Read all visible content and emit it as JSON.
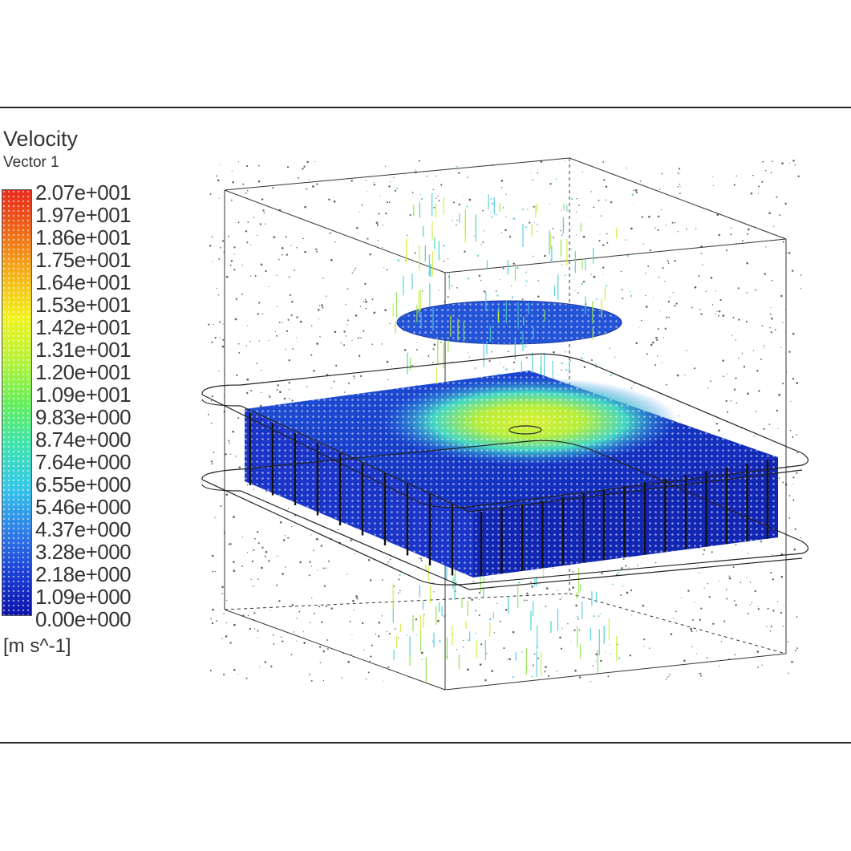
{
  "legend": {
    "title": "Velocity",
    "subtitle": "Vector 1",
    "ticks": [
      "2.07e+001",
      "1.97e+001",
      "1.86e+001",
      "1.75e+001",
      "1.64e+001",
      "1.53e+001",
      "1.42e+001",
      "1.31e+001",
      "1.20e+001",
      "1.09e+001",
      "9.83e+000",
      "8.74e+000",
      "7.64e+000",
      "6.55e+000",
      "5.46e+000",
      "4.37e+000",
      "3.28e+000",
      "2.18e+000",
      "1.09e+000",
      "0.00e+000"
    ],
    "units": "[m s^-1]",
    "colors": [
      "#0b12a8",
      "#1c3fd6",
      "#2f7fe8",
      "#35c7e8",
      "#3fe3b0",
      "#66ef5a",
      "#b8f23a",
      "#f2f21e",
      "#f5b31c",
      "#ef6a1a",
      "#e8281c"
    ]
  }
}
